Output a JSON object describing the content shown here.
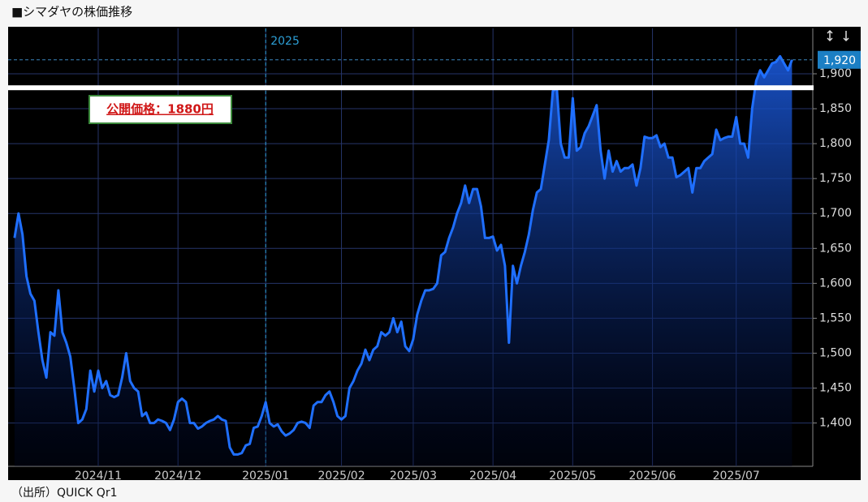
{
  "chart_data": {
    "type": "area-line",
    "title": "■シマダヤの株価推移",
    "source": "（出所）QUICK Qr1",
    "color": "#1f6fff",
    "x": [
      0,
      1,
      2,
      3,
      4,
      5,
      6,
      7,
      8,
      9,
      10,
      11,
      12,
      13,
      14,
      15,
      16,
      17,
      18,
      19,
      20,
      21,
      22,
      23,
      24,
      25,
      26,
      27,
      28,
      29,
      30,
      31,
      32,
      33,
      34,
      35,
      36,
      37,
      38,
      39,
      40,
      41,
      42,
      43,
      44,
      45,
      46,
      47,
      48,
      49,
      50,
      51,
      52,
      53,
      54,
      55,
      56,
      57,
      58,
      59,
      60,
      61,
      62,
      63,
      64,
      65,
      66,
      67,
      68,
      69,
      70,
      71,
      72,
      73,
      74,
      75,
      76,
      77,
      78,
      79,
      80,
      81,
      82,
      83,
      84,
      85,
      86,
      87,
      88,
      89,
      90,
      91,
      92,
      93,
      94,
      95,
      96,
      97,
      98,
      99,
      100,
      101,
      102,
      103,
      104,
      105,
      106,
      107,
      108,
      109,
      110,
      111,
      112,
      113,
      114,
      115,
      116,
      117,
      118,
      119,
      120,
      121,
      122,
      123,
      124,
      125,
      126,
      127,
      128,
      129,
      130,
      131,
      132,
      133,
      134,
      135,
      136,
      137,
      138,
      139,
      140,
      141,
      142,
      143,
      144,
      145,
      146,
      147,
      148,
      149,
      150,
      151,
      152,
      153,
      154,
      155,
      156,
      157,
      158,
      159,
      160,
      161,
      162,
      163,
      164,
      165,
      166,
      167,
      168,
      169,
      170,
      171,
      172,
      173,
      174,
      175,
      176,
      177,
      178,
      179,
      180,
      181,
      182,
      183,
      184,
      185,
      186,
      187,
      188,
      189,
      190,
      191,
      192,
      193,
      194,
      195
    ],
    "values": [
      1665,
      1700,
      1670,
      1610,
      1585,
      1575,
      1530,
      1490,
      1465,
      1530,
      1525,
      1590,
      1530,
      1515,
      1495,
      1450,
      1400,
      1405,
      1420,
      1475,
      1445,
      1475,
      1450,
      1460,
      1440,
      1437,
      1440,
      1465,
      1500,
      1460,
      1450,
      1445,
      1410,
      1415,
      1400,
      1400,
      1405,
      1403,
      1400,
      1390,
      1405,
      1430,
      1435,
      1430,
      1400,
      1400,
      1392,
      1395,
      1400,
      1403,
      1405,
      1410,
      1405,
      1403,
      1365,
      1355,
      1355,
      1357,
      1368,
      1370,
      1393,
      1395,
      1410,
      1430,
      1400,
      1395,
      1398,
      1388,
      1382,
      1385,
      1390,
      1400,
      1402,
      1400,
      1393,
      1425,
      1430,
      1430,
      1440,
      1445,
      1430,
      1410,
      1405,
      1410,
      1450,
      1460,
      1475,
      1485,
      1505,
      1490,
      1505,
      1510,
      1530,
      1525,
      1530,
      1550,
      1530,
      1545,
      1510,
      1503,
      1520,
      1555,
      1575,
      1590,
      1590,
      1592,
      1600,
      1640,
      1645,
      1665,
      1680,
      1700,
      1715,
      1740,
      1715,
      1735,
      1735,
      1710,
      1665,
      1665,
      1667,
      1647,
      1655,
      1625,
      1515,
      1625,
      1600,
      1625,
      1645,
      1670,
      1705,
      1730,
      1735,
      1770,
      1805,
      1875,
      1880,
      1800,
      1780,
      1780,
      1865,
      1790,
      1795,
      1815,
      1825,
      1840,
      1855,
      1790,
      1750,
      1790,
      1760,
      1775,
      1760,
      1765,
      1765,
      1770,
      1740,
      1765,
      1810,
      1808,
      1808,
      1812,
      1795,
      1800,
      1780,
      1780,
      1752,
      1755,
      1760,
      1765,
      1730,
      1765,
      1765,
      1775,
      1780,
      1785,
      1820,
      1805,
      1808,
      1810,
      1810,
      1838,
      1800,
      1800,
      1780,
      1850,
      1890,
      1905,
      1895,
      1905,
      1915,
      1917,
      1925,
      1915,
      1905,
      1920
    ],
    "xlim": [
      -1.6,
      200
    ],
    "xticks": [
      {
        "value": 21,
        "label": "2024/11"
      },
      {
        "value": 41,
        "label": "2024/12"
      },
      {
        "value": 63,
        "label": "2025/01"
      },
      {
        "value": 82,
        "label": "2025/02"
      },
      {
        "value": 100,
        "label": "2025/03"
      },
      {
        "value": 120,
        "label": "2025/04"
      },
      {
        "value": 140,
        "label": "2025/05"
      },
      {
        "value": 160,
        "label": "2025/06"
      },
      {
        "value": 181,
        "label": "2025/07"
      }
    ],
    "year_marker": {
      "value": 63,
      "label": "2025"
    },
    "ylim": [
      1338,
      1965
    ],
    "yticks": [
      {
        "value": 1400,
        "label": "1,400"
      },
      {
        "value": 1450,
        "label": "1,450"
      },
      {
        "value": 1500,
        "label": "1,500"
      },
      {
        "value": 1550,
        "label": "1,550"
      },
      {
        "value": 1600,
        "label": "1,600"
      },
      {
        "value": 1650,
        "label": "1,650"
      },
      {
        "value": 1700,
        "label": "1,700"
      },
      {
        "value": 1750,
        "label": "1,750"
      },
      {
        "value": 1800,
        "label": "1,800"
      },
      {
        "value": 1850,
        "label": "1,850"
      },
      {
        "value": 1900,
        "label": "1,900"
      }
    ],
    "last_value": {
      "value": 1920,
      "label": "1,920"
    },
    "reference_line": {
      "value": 1880,
      "label": "公開価格：1880円"
    },
    "grid": true
  }
}
